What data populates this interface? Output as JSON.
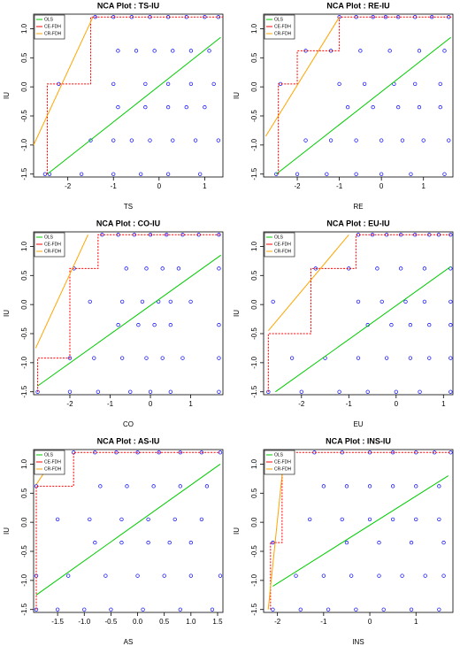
{
  "chart_data": [
    {
      "type": "scatter",
      "title": "NCA Plot : TS-IU",
      "x_label": "TS",
      "y_label": "IU",
      "legend": "upper left",
      "xlim": [
        -2.75,
        1.4
      ],
      "ylim": [
        -1.55,
        1.25
      ],
      "xticks": [
        -2,
        -1,
        0,
        1
      ],
      "yticks": [
        -1.5,
        {
          "value": -1,
          "label": "-1.0"
        },
        -0.5,
        {
          "value": 0,
          "label": "0.0"
        },
        0.5,
        {
          "value": 1,
          "label": "1.0"
        }
      ],
      "series": [
        {
          "color": "#0000ff",
          "mode": "markers",
          "x": [
            -1.4,
            -1.0,
            -0.6,
            -0.2,
            0.2,
            0.6,
            1.0,
            1.3,
            -0.9,
            -0.5,
            -0.1,
            0.3,
            0.7,
            1.1,
            -2.2,
            -1.0,
            -0.3,
            0.2,
            0.7,
            1.2,
            -0.9,
            -0.3,
            0.2,
            0.6,
            1.0,
            -1.5,
            -1.0,
            -0.6,
            -0.2,
            0.3,
            0.8,
            1.3,
            -2.5,
            -2.4,
            -1.7,
            -1.0,
            -0.4,
            0.2,
            0.9
          ],
          "values": [
            1.2,
            1.2,
            1.2,
            1.2,
            1.2,
            1.2,
            1.2,
            1.2,
            0.62,
            0.62,
            0.62,
            0.62,
            0.62,
            0.62,
            0.05,
            0.05,
            0.05,
            0.05,
            0.05,
            0.05,
            -0.35,
            -0.35,
            -0.35,
            -0.35,
            -0.35,
            -0.92,
            -0.92,
            -0.92,
            -0.92,
            -0.92,
            -0.92,
            -0.92,
            -1.5,
            -1.5,
            -1.5,
            -1.5,
            -1.5,
            -1.5,
            -1.5
          ]
        },
        {
          "name": "OLS",
          "color": "#00cc00",
          "mode": "lines",
          "x": [
            -2.45,
            1.35
          ],
          "values": [
            -1.5,
            0.85
          ]
        },
        {
          "name": "CE-FDH",
          "color": "#ff0000",
          "mode": "lines",
          "dashed": true,
          "x": [
            -2.45,
            -2.45,
            -1.5,
            -1.5,
            1.4
          ],
          "values": [
            -1.5,
            0.05,
            0.05,
            1.2,
            1.2
          ]
        },
        {
          "name": "CR-FDH",
          "color": "#ffa500",
          "mode": "lines",
          "x": [
            -2.75,
            -1.45
          ],
          "values": [
            -1.0,
            1.2
          ]
        }
      ]
    },
    {
      "type": "scatter",
      "title": "NCA Plot : RE-IU",
      "x_label": "RE",
      "y_label": "IU",
      "legend": "upper left",
      "xlim": [
        -2.8,
        1.7
      ],
      "ylim": [
        -1.55,
        1.25
      ],
      "xticks": [
        -2,
        -1,
        0,
        1
      ],
      "yticks": [
        -1.5,
        {
          "value": -1,
          "label": "-1.0"
        },
        -0.5,
        {
          "value": 0,
          "label": "0.0"
        },
        0.5,
        {
          "value": 1,
          "label": "1.0"
        }
      ],
      "series": [
        {
          "color": "#0000ff",
          "mode": "markers",
          "x": [
            -1.0,
            -0.6,
            -0.2,
            0.1,
            0.4,
            0.8,
            1.2,
            1.6,
            -1.8,
            -1.2,
            -0.5,
            0.2,
            0.9,
            1.5,
            -2.4,
            -1.0,
            -0.4,
            0.3,
            0.8,
            1.4,
            -0.8,
            -0.2,
            0.4,
            0.9,
            1.4,
            -1.8,
            -1.2,
            -0.6,
            0,
            0.5,
            1.0,
            1.6,
            -2.5,
            -2.0,
            -1.3,
            -0.6,
            0,
            0.7,
            1.5
          ],
          "values": [
            1.2,
            1.2,
            1.2,
            1.2,
            1.2,
            1.2,
            1.2,
            1.2,
            0.62,
            0.62,
            0.62,
            0.62,
            0.62,
            0.62,
            0.05,
            0.05,
            0.05,
            0.05,
            0.05,
            0.05,
            -0.35,
            -0.35,
            -0.35,
            -0.35,
            -0.35,
            -0.92,
            -0.92,
            -0.92,
            -0.92,
            -0.92,
            -0.92,
            -0.92,
            -1.5,
            -1.5,
            -1.5,
            -1.5,
            -1.5,
            -1.5,
            -1.5
          ]
        },
        {
          "name": "OLS",
          "color": "#00cc00",
          "mode": "lines",
          "x": [
            -2.5,
            1.65
          ],
          "values": [
            -1.5,
            0.85
          ]
        },
        {
          "name": "CE-FDH",
          "color": "#ff0000",
          "mode": "lines",
          "dashed": true,
          "x": [
            -2.45,
            -2.45,
            -2.0,
            -2.0,
            -1.0,
            -1.0,
            1.7
          ],
          "values": [
            -1.5,
            0.05,
            0.05,
            0.62,
            0.62,
            1.2,
            1.2
          ]
        },
        {
          "name": "CR-FDH",
          "color": "#ffa500",
          "mode": "lines",
          "x": [
            -2.75,
            -1.0
          ],
          "values": [
            -0.85,
            1.2
          ]
        }
      ]
    },
    {
      "type": "scatter",
      "title": "NCA Plot : CO-IU",
      "x_label": "CO",
      "y_label": "IU",
      "legend": "upper left",
      "xlim": [
        -2.9,
        1.8
      ],
      "ylim": [
        -1.55,
        1.25
      ],
      "xticks": [
        -2,
        -1,
        0,
        1
      ],
      "yticks": [
        -1.5,
        {
          "value": -1,
          "label": "-1.0"
        },
        -0.5,
        {
          "value": 0,
          "label": "0.0"
        },
        0.5,
        {
          "value": 1,
          "label": "1.0"
        }
      ],
      "series": [
        {
          "color": "#0000ff",
          "mode": "markers",
          "x": [
            -1.2,
            -0.8,
            -0.4,
            0,
            0.4,
            0.8,
            1.2,
            1.7,
            -1.9,
            -0.6,
            -0.1,
            0.3,
            0.7,
            1.7,
            -1.5,
            -0.7,
            -0.2,
            0.2,
            0.5,
            1.0,
            -0.8,
            -0.3,
            0.1,
            0.5,
            1.7,
            -2.0,
            -1.4,
            -0.7,
            -0.1,
            0.3,
            0.8,
            1.7,
            -2.8,
            -2.0,
            -1.3,
            -0.5,
            0,
            0.5,
            1.7
          ],
          "values": [
            1.2,
            1.2,
            1.2,
            1.2,
            1.2,
            1.2,
            1.2,
            1.2,
            0.62,
            0.62,
            0.62,
            0.62,
            0.62,
            0.62,
            0.05,
            0.05,
            0.05,
            0.05,
            0.05,
            0.05,
            -0.35,
            -0.35,
            -0.35,
            -0.35,
            -0.35,
            -0.92,
            -0.92,
            -0.92,
            -0.92,
            -0.92,
            -0.92,
            -0.92,
            -1.5,
            -1.5,
            -1.5,
            -1.5,
            -1.5,
            -1.5,
            -1.5
          ]
        },
        {
          "name": "OLS",
          "color": "#00cc00",
          "mode": "lines",
          "x": [
            -2.8,
            1.75
          ],
          "values": [
            -1.4,
            0.85
          ]
        },
        {
          "name": "CE-FDH",
          "color": "#ff0000",
          "mode": "lines",
          "dashed": true,
          "x": [
            -2.8,
            -2.8,
            -2.0,
            -2.0,
            -1.3,
            -1.3,
            1.75
          ],
          "values": [
            -1.5,
            -0.92,
            -0.92,
            0.62,
            0.62,
            1.2,
            1.2
          ]
        },
        {
          "name": "CR-FDH",
          "color": "#ffa500",
          "mode": "lines",
          "x": [
            -2.85,
            -1.55
          ],
          "values": [
            -0.75,
            1.2
          ]
        }
      ]
    },
    {
      "type": "scatter",
      "title": "NCA Plot : EU-IU",
      "x_label": "EU",
      "y_label": "IU",
      "legend": "upper left",
      "xlim": [
        -2.8,
        1.2
      ],
      "ylim": [
        -1.55,
        1.25
      ],
      "xticks": [
        -2,
        -1,
        0,
        1
      ],
      "yticks": [
        -1.5,
        {
          "value": -1,
          "label": "-1.0"
        },
        -0.5,
        {
          "value": 0,
          "label": "0.0"
        },
        0.5,
        {
          "value": 1,
          "label": "1.0"
        }
      ],
      "series": [
        {
          "color": "#0000ff",
          "mode": "markers",
          "x": [
            -0.8,
            -0.5,
            -0.2,
            0.1,
            0.4,
            0.7,
            0.9,
            1.15,
            -1.7,
            -1.0,
            -0.4,
            0.1,
            0.6,
            1.15,
            -2.6,
            -0.8,
            -0.3,
            0.2,
            0.6,
            1.15,
            -0.6,
            -0.1,
            0.3,
            0.7,
            1.15,
            -2.2,
            -1.5,
            -0.8,
            -0.2,
            0.3,
            0.7,
            1.15,
            -2.7,
            -2.0,
            -1.2,
            -0.6,
            0,
            0.5,
            1.15
          ],
          "values": [
            1.2,
            1.2,
            1.2,
            1.2,
            1.2,
            1.2,
            1.2,
            1.2,
            0.62,
            0.62,
            0.62,
            0.62,
            0.62,
            0.62,
            0.05,
            0.05,
            0.05,
            0.05,
            0.05,
            0.05,
            -0.35,
            -0.35,
            -0.35,
            -0.35,
            -0.35,
            -0.92,
            -0.92,
            -0.92,
            -0.92,
            -0.92,
            -0.92,
            -0.92,
            -1.5,
            -1.5,
            -1.5,
            -1.5,
            -1.5,
            -1.5,
            -1.5
          ]
        },
        {
          "name": "OLS",
          "color": "#00cc00",
          "mode": "lines",
          "x": [
            -2.55,
            1.15
          ],
          "values": [
            -1.5,
            0.65
          ]
        },
        {
          "name": "CE-FDH",
          "color": "#ff0000",
          "mode": "lines",
          "dashed": true,
          "x": [
            -2.7,
            -2.7,
            -1.8,
            -1.8,
            -0.85,
            -0.85,
            1.15
          ],
          "values": [
            -1.5,
            -0.5,
            -0.5,
            0.62,
            0.62,
            1.2,
            1.2
          ]
        },
        {
          "name": "CR-FDH",
          "color": "#ffa500",
          "mode": "lines",
          "x": [
            -2.7,
            -1.0
          ],
          "values": [
            -0.45,
            1.2
          ]
        }
      ]
    },
    {
      "type": "scatter",
      "title": "NCA Plot : AS-IU",
      "x_label": "AS",
      "y_label": "IU",
      "legend": "upper left",
      "xlim": [
        -1.95,
        1.6
      ],
      "ylim": [
        -1.55,
        1.25
      ],
      "xticks": [
        -1.5,
        {
          "value": -1,
          "label": "-1.0"
        },
        -0.5,
        {
          "value": 0,
          "label": "0.0"
        },
        0.5,
        {
          "value": 1,
          "label": "1.0"
        },
        1.5
      ],
      "yticks": [
        -1.5,
        {
          "value": -1,
          "label": "-1.0"
        },
        -0.5,
        {
          "value": 0,
          "label": "0.0"
        },
        0.5,
        {
          "value": 1,
          "label": "1.0"
        }
      ],
      "series": [
        {
          "color": "#0000ff",
          "mode": "markers",
          "x": [
            -1.2,
            -0.8,
            -0.4,
            0,
            0.4,
            0.8,
            1.2,
            1.55,
            -1.9,
            -0.7,
            -0.2,
            0.3,
            0.8,
            1.3,
            -1.5,
            -0.9,
            -0.3,
            0.2,
            0.7,
            1.2,
            -0.8,
            -0.3,
            0.2,
            0.6,
            1.0,
            -1.9,
            -1.3,
            -0.6,
            0,
            0.5,
            1.0,
            1.55,
            -1.9,
            -1.5,
            -1.0,
            -0.5,
            0.1,
            0.8,
            1.4
          ],
          "values": [
            1.2,
            1.2,
            1.2,
            1.2,
            1.2,
            1.2,
            1.2,
            1.2,
            0.62,
            0.62,
            0.62,
            0.62,
            0.62,
            0.62,
            0.05,
            0.05,
            0.05,
            0.05,
            0.05,
            0.05,
            -0.35,
            -0.35,
            -0.35,
            -0.35,
            -0.35,
            -0.92,
            -0.92,
            -0.92,
            -0.92,
            -0.92,
            -0.92,
            -0.92,
            -1.5,
            -1.5,
            -1.5,
            -1.5,
            -1.5,
            -1.5,
            -1.5
          ]
        },
        {
          "name": "OLS",
          "color": "#00cc00",
          "mode": "lines",
          "x": [
            -1.9,
            1.55
          ],
          "values": [
            -1.25,
            1.0
          ]
        },
        {
          "name": "CE-FDH",
          "color": "#ff0000",
          "mode": "lines",
          "dashed": true,
          "x": [
            -1.9,
            -1.9,
            -1.2,
            -1.2,
            1.55
          ],
          "values": [
            -1.5,
            0.62,
            0.62,
            1.2,
            1.2
          ]
        },
        {
          "name": "CR-FDH",
          "color": "#ffa500",
          "mode": "lines",
          "x": [
            -1.9,
            -1.5
          ],
          "values": [
            0.65,
            1.2
          ]
        }
      ]
    },
    {
      "type": "scatter",
      "title": "NCA Plot : INS-IU",
      "x_label": "INS",
      "y_label": "IU",
      "legend": "upper left",
      "xlim": [
        -2.3,
        1.8
      ],
      "ylim": [
        -1.55,
        1.25
      ],
      "xticks": [
        -2,
        -1,
        0,
        1
      ],
      "yticks": [
        -1.5,
        {
          "value": -1,
          "label": "-1.0"
        },
        -0.5,
        {
          "value": 0,
          "label": "0.0"
        },
        0.5,
        {
          "value": 1,
          "label": "1.0"
        }
      ],
      "series": [
        {
          "color": "#0000ff",
          "mode": "markers",
          "x": [
            -1.9,
            -1.2,
            -0.6,
            0,
            0.5,
            1.0,
            1.4,
            1.75,
            -1.0,
            -0.5,
            0,
            0.5,
            1.0,
            1.5,
            -1.3,
            -0.6,
            0,
            0.5,
            1.0,
            1.5,
            -2.1,
            -0.5,
            0.2,
            0.9,
            1.6,
            -1.6,
            -1.0,
            -0.4,
            0.2,
            0.7,
            1.2,
            1.6,
            -2.1,
            -1.5,
            -0.9,
            -0.3,
            0.3,
            0.9,
            1.5
          ],
          "values": [
            1.2,
            1.2,
            1.2,
            1.2,
            1.2,
            1.2,
            1.2,
            1.2,
            0.62,
            0.62,
            0.62,
            0.62,
            0.62,
            0.62,
            0.05,
            0.05,
            0.05,
            0.05,
            0.05,
            0.05,
            -0.35,
            -0.35,
            -0.35,
            -0.35,
            -0.35,
            -0.92,
            -0.92,
            -0.92,
            -0.92,
            -0.92,
            -0.92,
            -0.92,
            -1.5,
            -1.5,
            -1.5,
            -1.5,
            -1.5,
            -1.5,
            -1.5
          ]
        },
        {
          "name": "OLS",
          "color": "#00cc00",
          "mode": "lines",
          "x": [
            -2.1,
            1.7
          ],
          "values": [
            -1.1,
            0.8
          ]
        },
        {
          "name": "CE-FDH",
          "color": "#ff0000",
          "mode": "lines",
          "dashed": true,
          "x": [
            -2.15,
            -2.15,
            -1.9,
            -1.9,
            1.75
          ],
          "values": [
            -1.5,
            -0.35,
            -0.35,
            1.2,
            1.2
          ]
        },
        {
          "name": "CR-FDH",
          "color": "#ffa500",
          "mode": "lines",
          "x": [
            -2.2,
            -1.85
          ],
          "values": [
            -1.5,
            1.2
          ]
        }
      ]
    }
  ]
}
